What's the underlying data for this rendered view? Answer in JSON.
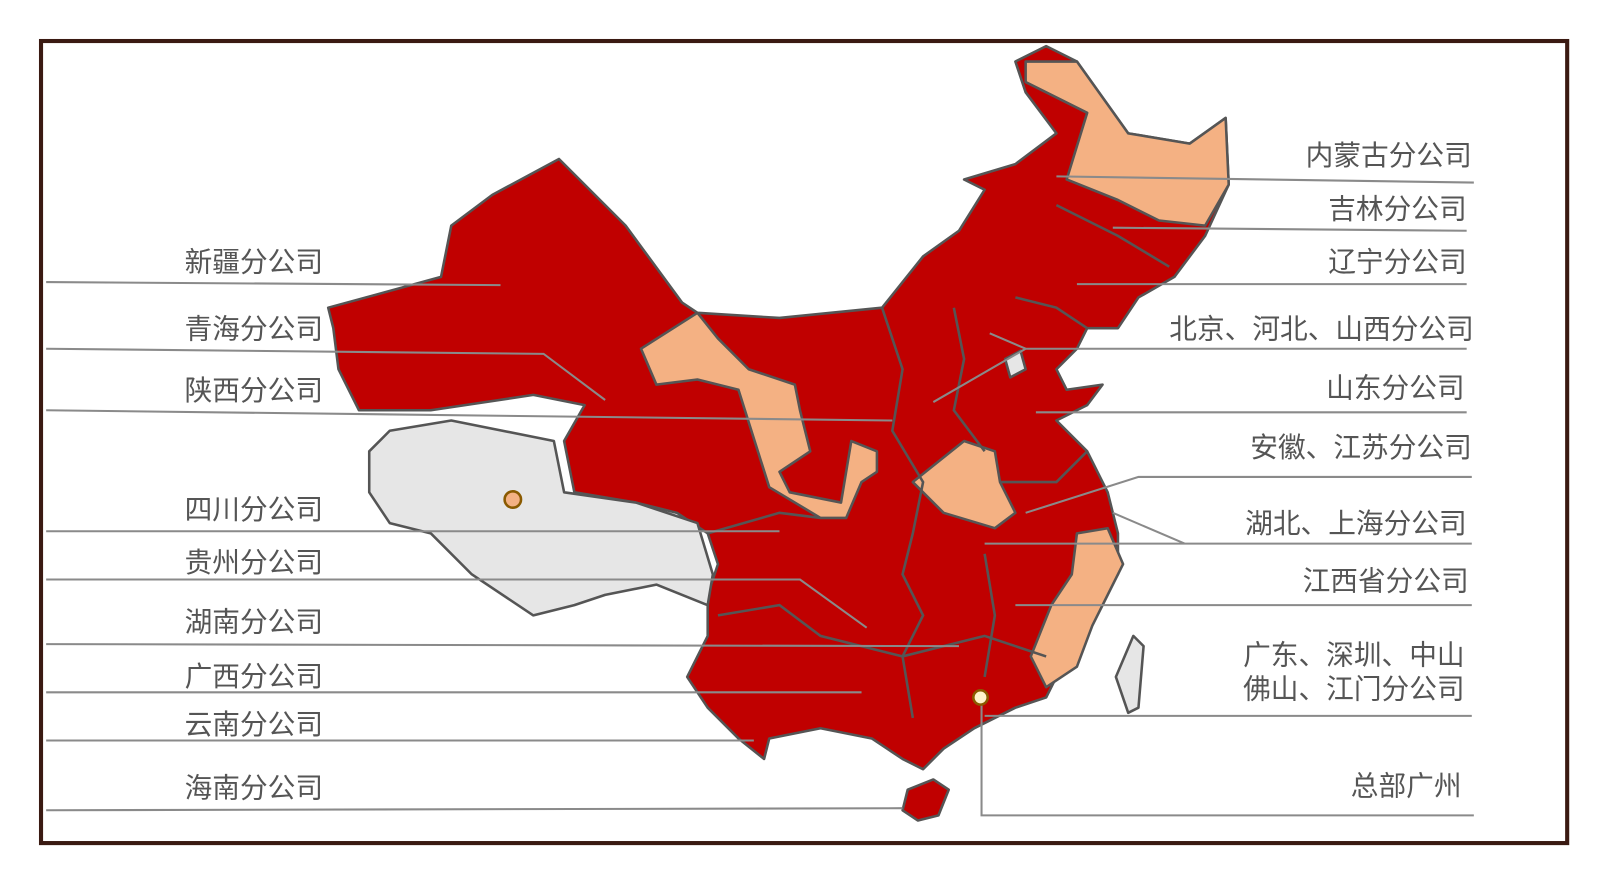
{
  "labels_left": [
    "新疆分公司",
    "青海分公司",
    "陕西分公司",
    "四川分公司",
    "贵州分公司",
    "湖南分公司",
    "广西分公司",
    "云南分公司",
    "海南分公司"
  ],
  "labels_right": [
    "内蒙古分公司",
    "吉林分公司",
    "辽宁分公司",
    "北京、河北、山西分公司",
    "山东分公司",
    "安徽、江苏分公司",
    "湖北、上海分公司",
    "江西省分公司"
  ],
  "guangdong": [
    "广东、深圳、中山",
    "佛山、江门分公司"
  ],
  "headquarters": "总部广州"
}
